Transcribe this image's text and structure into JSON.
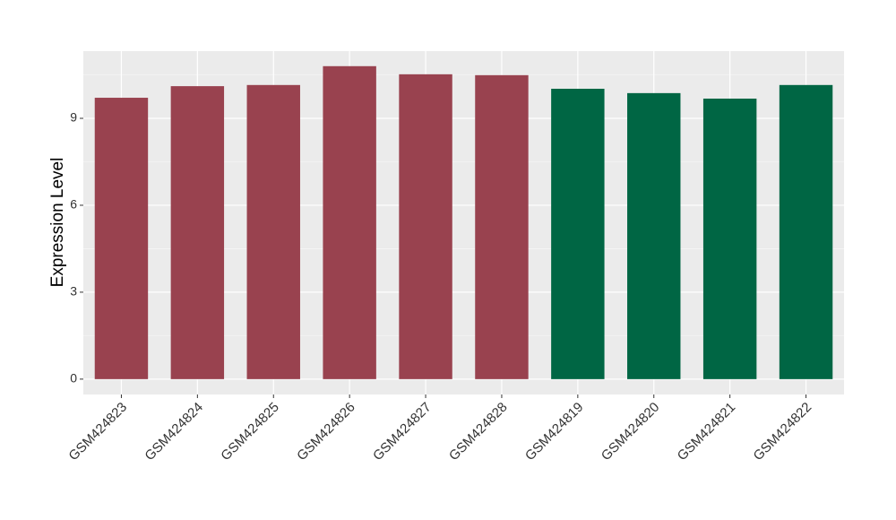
{
  "chart_data": {
    "type": "bar",
    "y_label": "Expression Level",
    "categories": [
      "GSM424823",
      "GSM424824",
      "GSM424825",
      "GSM424826",
      "GSM424827",
      "GSM424828",
      "GSM424819",
      "GSM424820",
      "GSM424821",
      "GSM424822"
    ],
    "values": [
      9.71,
      10.11,
      10.15,
      10.8,
      10.52,
      10.49,
      10.02,
      9.87,
      9.68,
      10.15
    ],
    "colors": [
      "#99424f",
      "#99424f",
      "#99424f",
      "#99424f",
      "#99424f",
      "#99424f",
      "#006644",
      "#006644",
      "#006644",
      "#006644"
    ],
    "ylim": [
      -0.53,
      11.32
    ],
    "yticks": [
      0,
      3,
      6,
      9
    ],
    "minor_yticks": [
      1.5,
      4.5,
      7.5,
      10.5
    ],
    "grid": true
  }
}
